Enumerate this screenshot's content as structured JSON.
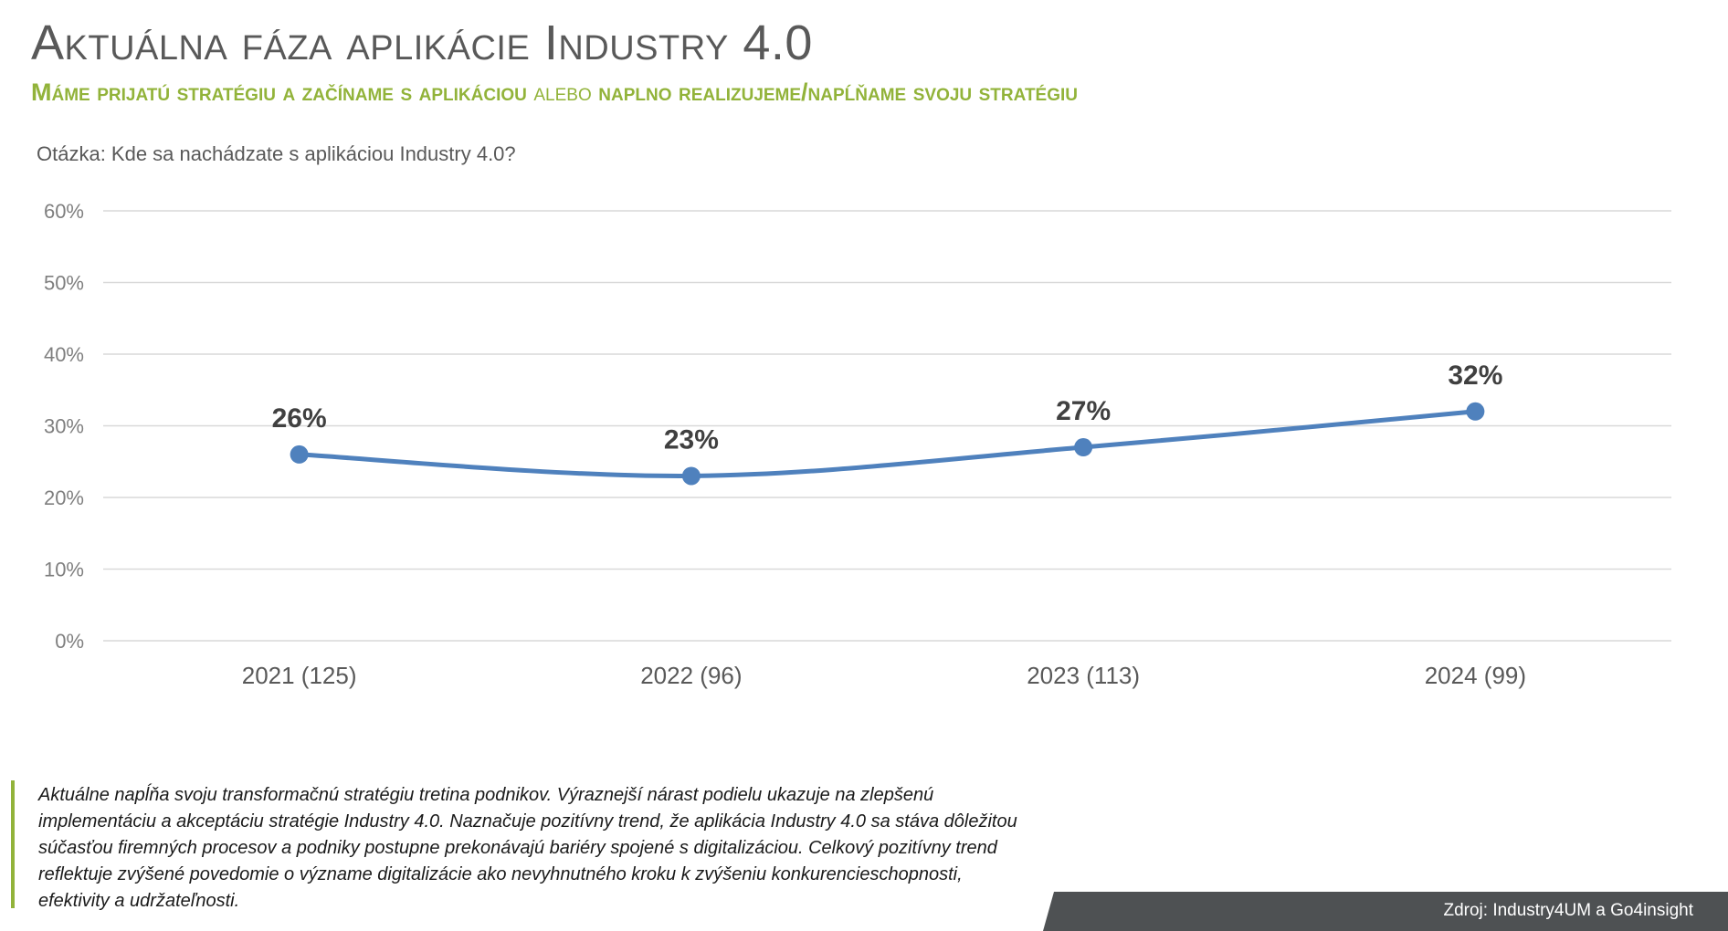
{
  "header": {
    "title": "Aktuálna fáza aplikácie Industry 4.0",
    "subtitle_part1": "Máme prijatú stratégiu a začíname s aplikáciou",
    "subtitle_connector": "alebo",
    "subtitle_part2": "naplno realizujeme/napĺňame svoju stratégiu",
    "question": "Otázka: Kde sa nachádzate s aplikáciou Industry 4.0?"
  },
  "chart_data": {
    "type": "line",
    "title": "",
    "xlabel": "",
    "ylabel": "",
    "categories": [
      "2021 (125)",
      "2022 (96)",
      "2023 (113)",
      "2024 (99)"
    ],
    "series": [
      {
        "values": [
          26,
          23,
          27,
          32
        ],
        "color": "#4f81bd"
      }
    ],
    "data_labels": [
      "26%",
      "23%",
      "27%",
      "32%"
    ],
    "y_ticks": [
      "0%",
      "10%",
      "20%",
      "30%",
      "40%",
      "50%",
      "60%"
    ],
    "ylim": [
      0,
      60
    ],
    "grid": true,
    "legend": "none",
    "smooth": true
  },
  "note": {
    "text": "Aktuálne napĺňa svoju transformačnú stratégiu tretina podnikov. Výraznejší nárast podielu ukazuje na zlepšenú implementáciu a akceptáciu stratégie Industry 4.0. Naznačuje pozitívny trend, že aplikácia Industry 4.0 sa stáva dôležitou súčasťou firemných procesov a podniky postupne prekonávajú bariéry spojené s digitalizáciou. Celkový pozitívny trend reflektuje zvýšené povedomie o význame digitalizácie ako nevyhnutného kroku k zvýšeniu konkurencieschopnosti, efektivity a udržateľnosti."
  },
  "footer": {
    "source": "Zdroj: Industry4UM a Go4insight"
  },
  "colors": {
    "accent_green": "#92b33a",
    "series_blue": "#4f81bd",
    "text_gray": "#595959",
    "footer_bg": "#4e5153"
  }
}
